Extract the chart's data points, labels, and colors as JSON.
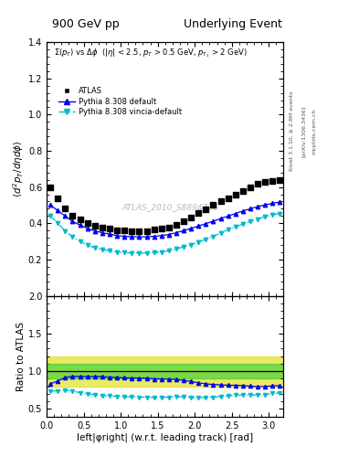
{
  "title_left": "900 GeV pp",
  "title_right": "Underlying Event",
  "watermark": "ATLAS_2010_S8894728",
  "right_label_top": "Rivet 3.1.10, ≥ 2.8M events",
  "right_label_mid": "[arXiv:1306.3436]",
  "right_label_bot": "mcplots.cern.ch",
  "ylabel_main": "⟨d² p_T/dηdφ⟩",
  "ylabel_ratio": "Ratio to ATLAS",
  "xlabel": "left|φright| (w.r.t. leading track) [rad]",
  "xlim": [
    0,
    3.2
  ],
  "ylim_main": [
    0.0,
    1.4
  ],
  "ylim_ratio": [
    0.4,
    2.0
  ],
  "yticks_main": [
    0.2,
    0.4,
    0.6,
    0.8,
    1.0,
    1.2,
    1.4
  ],
  "yticks_ratio": [
    0.5,
    1.0,
    1.5,
    2.0
  ],
  "ratio_band_green": [
    0.9,
    1.1
  ],
  "ratio_band_yellow": [
    0.8,
    1.2
  ],
  "dphi": [
    0.05,
    0.15,
    0.25,
    0.35,
    0.45,
    0.55,
    0.65,
    0.75,
    0.85,
    0.95,
    1.05,
    1.15,
    1.25,
    1.35,
    1.45,
    1.55,
    1.65,
    1.75,
    1.85,
    1.95,
    2.05,
    2.15,
    2.25,
    2.35,
    2.45,
    2.55,
    2.65,
    2.75,
    2.85,
    2.95,
    3.05,
    3.15
  ],
  "atlas_y": [
    0.6,
    0.54,
    0.48,
    0.44,
    0.42,
    0.4,
    0.385,
    0.375,
    0.37,
    0.362,
    0.36,
    0.358,
    0.358,
    0.358,
    0.365,
    0.37,
    0.378,
    0.39,
    0.41,
    0.43,
    0.455,
    0.478,
    0.5,
    0.52,
    0.54,
    0.558,
    0.578,
    0.598,
    0.618,
    0.63,
    0.632,
    0.64
  ],
  "pythia_default_y": [
    0.5,
    0.47,
    0.44,
    0.41,
    0.39,
    0.372,
    0.358,
    0.348,
    0.34,
    0.332,
    0.328,
    0.326,
    0.325,
    0.325,
    0.328,
    0.332,
    0.338,
    0.348,
    0.36,
    0.372,
    0.385,
    0.398,
    0.412,
    0.426,
    0.44,
    0.454,
    0.468,
    0.48,
    0.492,
    0.502,
    0.51,
    0.518
  ],
  "pythia_vincia_y": [
    0.44,
    0.4,
    0.358,
    0.325,
    0.3,
    0.28,
    0.265,
    0.255,
    0.248,
    0.242,
    0.238,
    0.236,
    0.235,
    0.235,
    0.238,
    0.242,
    0.248,
    0.258,
    0.27,
    0.282,
    0.296,
    0.312,
    0.328,
    0.346,
    0.364,
    0.38,
    0.396,
    0.41,
    0.424,
    0.436,
    0.446,
    0.454
  ],
  "color_atlas": "#000000",
  "color_pythia_default": "#0000ee",
  "color_pythia_vincia": "#00bbcc",
  "color_green_band": "#33cc33",
  "color_yellow_band": "#dddd00",
  "legend_entries": [
    "ATLAS",
    "Pythia 8.308 default",
    "Pythia 8.308 vincia-default"
  ]
}
